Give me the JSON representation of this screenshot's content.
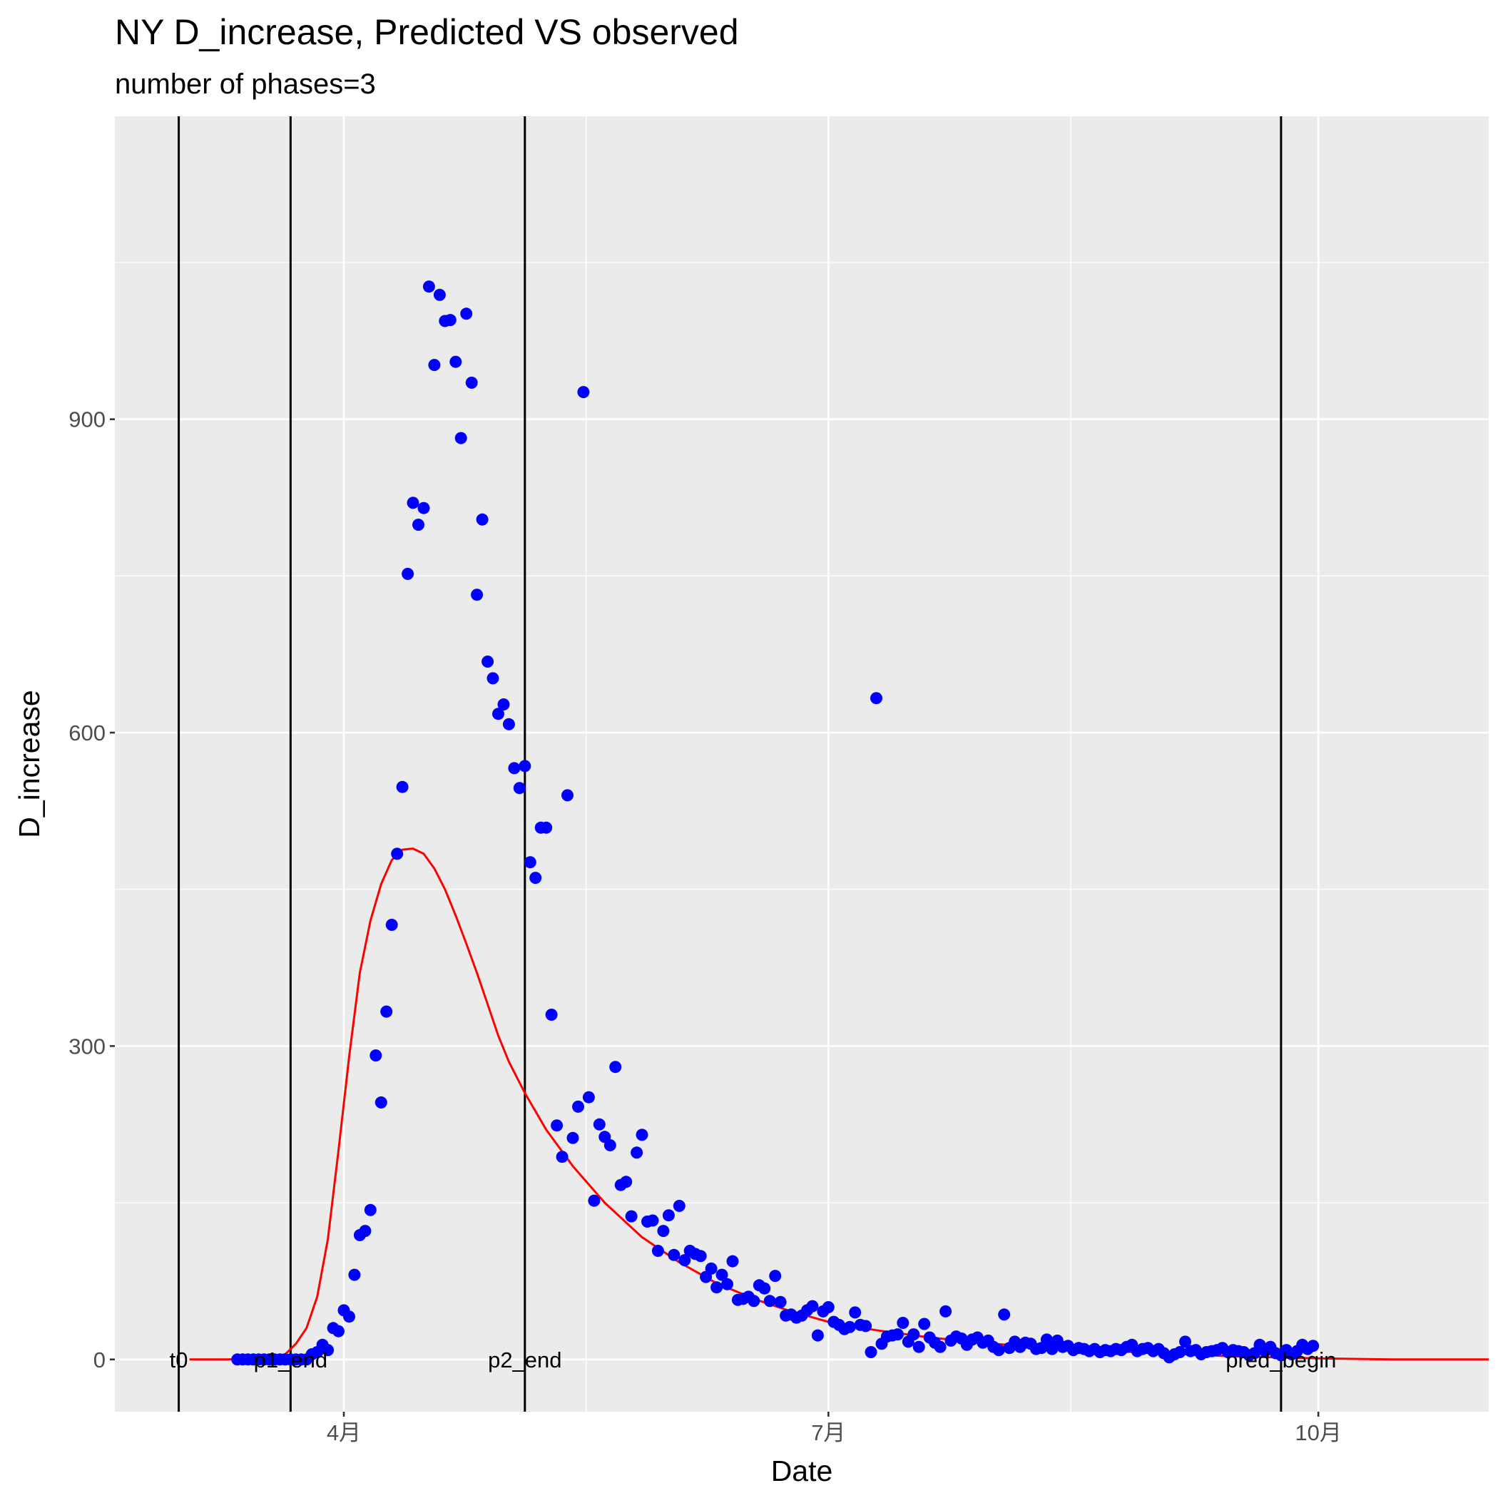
{
  "chart_data": {
    "type": "scatter",
    "title": "NY D_increase, Predicted VS observed",
    "subtitle": "number of phases=3",
    "xlabel": "Date",
    "ylabel": "D_increase",
    "x_ticks": [
      {
        "date": "2020-04-01",
        "label": "4月"
      },
      {
        "date": "2020-07-01",
        "label": "7月"
      },
      {
        "date": "2020-10-01",
        "label": "10月"
      }
    ],
    "y_ticks": [
      0,
      300,
      600,
      900
    ],
    "xlim": [
      "2020-02-18",
      "2020-11-02"
    ],
    "ylim": [
      -50,
      1190
    ],
    "grid": true,
    "colors": {
      "panel": "#ebebeb",
      "grid": "#ffffff",
      "observed": "#0000ff",
      "predicted": "#ff0000",
      "vline": "#000000"
    },
    "vlines": [
      {
        "date": "2020-03-01",
        "label": "t0"
      },
      {
        "date": "2020-03-22",
        "label": "p1_end"
      },
      {
        "date": "2020-05-05",
        "label": "p2_end"
      },
      {
        "date": "2020-09-24",
        "label": "pred_begin"
      }
    ],
    "series": [
      {
        "type": "scatter",
        "points": [
          [
            "2020-03-12",
            0
          ],
          [
            "2020-03-13",
            0
          ],
          [
            "2020-03-14",
            0
          ],
          [
            "2020-03-15",
            0
          ],
          [
            "2020-03-16",
            0
          ],
          [
            "2020-03-17",
            0
          ],
          [
            "2020-03-18",
            0
          ],
          [
            "2020-03-19",
            0
          ],
          [
            "2020-03-20",
            0
          ],
          [
            "2020-03-21",
            0
          ],
          [
            "2020-03-22",
            0
          ],
          [
            "2020-03-23",
            0
          ],
          [
            "2020-03-24",
            0
          ],
          [
            "2020-03-25",
            0
          ],
          [
            "2020-03-26",
            5
          ],
          [
            "2020-03-27",
            7
          ],
          [
            "2020-03-28",
            14
          ],
          [
            "2020-03-29",
            9
          ],
          [
            "2020-03-30",
            30
          ],
          [
            "2020-03-31",
            27
          ],
          [
            "2020-04-01",
            47
          ],
          [
            "2020-04-02",
            41
          ],
          [
            "2020-04-03",
            81
          ],
          [
            "2020-04-04",
            119
          ],
          [
            "2020-04-05",
            123
          ],
          [
            "2020-04-06",
            143
          ],
          [
            "2020-04-07",
            291
          ],
          [
            "2020-04-08",
            246
          ],
          [
            "2020-04-09",
            333
          ],
          [
            "2020-04-10",
            416
          ],
          [
            "2020-04-11",
            484
          ],
          [
            "2020-04-12",
            548
          ],
          [
            "2020-04-13",
            752
          ],
          [
            "2020-04-14",
            820
          ],
          [
            "2020-04-15",
            799
          ],
          [
            "2020-04-16",
            815
          ],
          [
            "2020-04-17",
            1027
          ],
          [
            "2020-04-18",
            952
          ],
          [
            "2020-04-19",
            1019
          ],
          [
            "2020-04-20",
            994
          ],
          [
            "2020-04-21",
            995
          ],
          [
            "2020-04-22",
            955
          ],
          [
            "2020-04-23",
            882
          ],
          [
            "2020-04-24",
            1001
          ],
          [
            "2020-04-25",
            935
          ],
          [
            "2020-04-26",
            732
          ],
          [
            "2020-04-27",
            804
          ],
          [
            "2020-04-28",
            668
          ],
          [
            "2020-04-29",
            652
          ],
          [
            "2020-04-30",
            618
          ],
          [
            "2020-05-01",
            627
          ],
          [
            "2020-05-02",
            608
          ],
          [
            "2020-05-03",
            566
          ],
          [
            "2020-05-04",
            547
          ],
          [
            "2020-05-05",
            568
          ],
          [
            "2020-05-06",
            476
          ],
          [
            "2020-05-07",
            461
          ],
          [
            "2020-05-08",
            509
          ],
          [
            "2020-05-09",
            509
          ],
          [
            "2020-05-10",
            330
          ],
          [
            "2020-05-11",
            224
          ],
          [
            "2020-05-12",
            194
          ],
          [
            "2020-05-13",
            540
          ],
          [
            "2020-05-14",
            212
          ],
          [
            "2020-05-15",
            242
          ],
          [
            "2020-05-16",
            926
          ],
          [
            "2020-05-17",
            251
          ],
          [
            "2020-05-18",
            152
          ],
          [
            "2020-05-19",
            225
          ],
          [
            "2020-05-20",
            213
          ],
          [
            "2020-05-21",
            205
          ],
          [
            "2020-05-22",
            280
          ],
          [
            "2020-05-23",
            167
          ],
          [
            "2020-05-24",
            170
          ],
          [
            "2020-05-25",
            137
          ],
          [
            "2020-05-26",
            198
          ],
          [
            "2020-05-27",
            215
          ],
          [
            "2020-05-28",
            132
          ],
          [
            "2020-05-29",
            133
          ],
          [
            "2020-05-30",
            104
          ],
          [
            "2020-05-31",
            123
          ],
          [
            "2020-06-01",
            138
          ],
          [
            "2020-06-02",
            100
          ],
          [
            "2020-06-03",
            147
          ],
          [
            "2020-06-04",
            95
          ],
          [
            "2020-06-05",
            104
          ],
          [
            "2020-06-06",
            101
          ],
          [
            "2020-06-07",
            99
          ],
          [
            "2020-06-08",
            79
          ],
          [
            "2020-06-09",
            87
          ],
          [
            "2020-06-10",
            69
          ],
          [
            "2020-06-11",
            81
          ],
          [
            "2020-06-12",
            72
          ],
          [
            "2020-06-13",
            94
          ],
          [
            "2020-06-14",
            57
          ],
          [
            "2020-06-15",
            58
          ],
          [
            "2020-06-16",
            60
          ],
          [
            "2020-06-17",
            56
          ],
          [
            "2020-06-18",
            71
          ],
          [
            "2020-06-19",
            68
          ],
          [
            "2020-06-20",
            56
          ],
          [
            "2020-06-21",
            80
          ],
          [
            "2020-06-22",
            55
          ],
          [
            "2020-06-23",
            42
          ],
          [
            "2020-06-24",
            43
          ],
          [
            "2020-06-25",
            40
          ],
          [
            "2020-06-26",
            42
          ],
          [
            "2020-06-27",
            47
          ],
          [
            "2020-06-28",
            51
          ],
          [
            "2020-06-29",
            23
          ],
          [
            "2020-06-30",
            46
          ],
          [
            "2020-07-01",
            50
          ],
          [
            "2020-07-02",
            36
          ],
          [
            "2020-07-03",
            33
          ],
          [
            "2020-07-04",
            29
          ],
          [
            "2020-07-05",
            31
          ],
          [
            "2020-07-06",
            45
          ],
          [
            "2020-07-07",
            33
          ],
          [
            "2020-07-08",
            32
          ],
          [
            "2020-07-09",
            7
          ],
          [
            "2020-07-10",
            633
          ],
          [
            "2020-07-11",
            15
          ],
          [
            "2020-07-12",
            22
          ],
          [
            "2020-07-13",
            23
          ],
          [
            "2020-07-14",
            24
          ],
          [
            "2020-07-15",
            35
          ],
          [
            "2020-07-16",
            17
          ],
          [
            "2020-07-17",
            24
          ],
          [
            "2020-07-18",
            12
          ],
          [
            "2020-07-19",
            34
          ],
          [
            "2020-07-20",
            21
          ],
          [
            "2020-07-21",
            16
          ],
          [
            "2020-07-22",
            12
          ],
          [
            "2020-07-23",
            46
          ],
          [
            "2020-07-24",
            18
          ],
          [
            "2020-07-25",
            22
          ],
          [
            "2020-07-26",
            20
          ],
          [
            "2020-07-27",
            14
          ],
          [
            "2020-07-28",
            19
          ],
          [
            "2020-07-29",
            21
          ],
          [
            "2020-07-30",
            16
          ],
          [
            "2020-07-31",
            18
          ],
          [
            "2020-08-01",
            12
          ],
          [
            "2020-08-02",
            9
          ],
          [
            "2020-08-03",
            43
          ],
          [
            "2020-08-04",
            11
          ],
          [
            "2020-08-05",
            17
          ],
          [
            "2020-08-06",
            12
          ],
          [
            "2020-08-07",
            16
          ],
          [
            "2020-08-08",
            15
          ],
          [
            "2020-08-09",
            10
          ],
          [
            "2020-08-10",
            11
          ],
          [
            "2020-08-11",
            19
          ],
          [
            "2020-08-12",
            10
          ],
          [
            "2020-08-13",
            18
          ],
          [
            "2020-08-14",
            12
          ],
          [
            "2020-08-15",
            13
          ],
          [
            "2020-08-16",
            9
          ],
          [
            "2020-08-17",
            11
          ],
          [
            "2020-08-18",
            10
          ],
          [
            "2020-08-19",
            8
          ],
          [
            "2020-08-20",
            10
          ],
          [
            "2020-08-21",
            7
          ],
          [
            "2020-08-22",
            9
          ],
          [
            "2020-08-23",
            8
          ],
          [
            "2020-08-24",
            10
          ],
          [
            "2020-08-25",
            9
          ],
          [
            "2020-08-26",
            12
          ],
          [
            "2020-08-27",
            14
          ],
          [
            "2020-08-28",
            8
          ],
          [
            "2020-08-29",
            10
          ],
          [
            "2020-08-30",
            11
          ],
          [
            "2020-08-31",
            8
          ],
          [
            "2020-09-01",
            10
          ],
          [
            "2020-09-02",
            6
          ],
          [
            "2020-09-03",
            2
          ],
          [
            "2020-09-04",
            5
          ],
          [
            "2020-09-05",
            7
          ],
          [
            "2020-09-06",
            17
          ],
          [
            "2020-09-07",
            8
          ],
          [
            "2020-09-08",
            9
          ],
          [
            "2020-09-09",
            5
          ],
          [
            "2020-09-10",
            7
          ],
          [
            "2020-09-11",
            8
          ],
          [
            "2020-09-12",
            9
          ],
          [
            "2020-09-13",
            11
          ],
          [
            "2020-09-14",
            7
          ],
          [
            "2020-09-15",
            9
          ],
          [
            "2020-09-16",
            8
          ],
          [
            "2020-09-17",
            7
          ],
          [
            "2020-09-18",
            4
          ],
          [
            "2020-09-19",
            6
          ],
          [
            "2020-09-20",
            14
          ],
          [
            "2020-09-21",
            8
          ],
          [
            "2020-09-22",
            12
          ],
          [
            "2020-09-23",
            6
          ],
          [
            "2020-09-24",
            4
          ],
          [
            "2020-09-25",
            9
          ],
          [
            "2020-09-26",
            5
          ],
          [
            "2020-09-27",
            8
          ],
          [
            "2020-09-28",
            14
          ],
          [
            "2020-09-29",
            10
          ],
          [
            "2020-09-30",
            13
          ]
        ]
      },
      {
        "type": "line",
        "points": [
          [
            "2020-03-03",
            0
          ],
          [
            "2020-03-10",
            0
          ],
          [
            "2020-03-17",
            1
          ],
          [
            "2020-03-21",
            5
          ],
          [
            "2020-03-23",
            15
          ],
          [
            "2020-03-25",
            30
          ],
          [
            "2020-03-27",
            60
          ],
          [
            "2020-03-29",
            115
          ],
          [
            "2020-03-31",
            200
          ],
          [
            "2020-04-02",
            290
          ],
          [
            "2020-04-04",
            370
          ],
          [
            "2020-04-06",
            420
          ],
          [
            "2020-04-08",
            455
          ],
          [
            "2020-04-10",
            478
          ],
          [
            "2020-04-12",
            488
          ],
          [
            "2020-04-14",
            489
          ],
          [
            "2020-04-16",
            484
          ],
          [
            "2020-04-18",
            470
          ],
          [
            "2020-04-20",
            450
          ],
          [
            "2020-04-22",
            425
          ],
          [
            "2020-04-24",
            398
          ],
          [
            "2020-04-26",
            370
          ],
          [
            "2020-04-28",
            340
          ],
          [
            "2020-04-30",
            310
          ],
          [
            "2020-05-02",
            285
          ],
          [
            "2020-05-05",
            255
          ],
          [
            "2020-05-09",
            220
          ],
          [
            "2020-05-14",
            185
          ],
          [
            "2020-05-20",
            150
          ],
          [
            "2020-05-27",
            117
          ],
          [
            "2020-06-03",
            93
          ],
          [
            "2020-06-10",
            73
          ],
          [
            "2020-06-17",
            58
          ],
          [
            "2020-06-24",
            46
          ],
          [
            "2020-07-01",
            36
          ],
          [
            "2020-07-10",
            28
          ],
          [
            "2020-07-20",
            21
          ],
          [
            "2020-08-01",
            15
          ],
          [
            "2020-08-15",
            10
          ],
          [
            "2020-09-01",
            6
          ],
          [
            "2020-09-15",
            3
          ],
          [
            "2020-10-01",
            1
          ],
          [
            "2020-10-15",
            0
          ],
          [
            "2020-11-02",
            0
          ]
        ]
      }
    ]
  }
}
